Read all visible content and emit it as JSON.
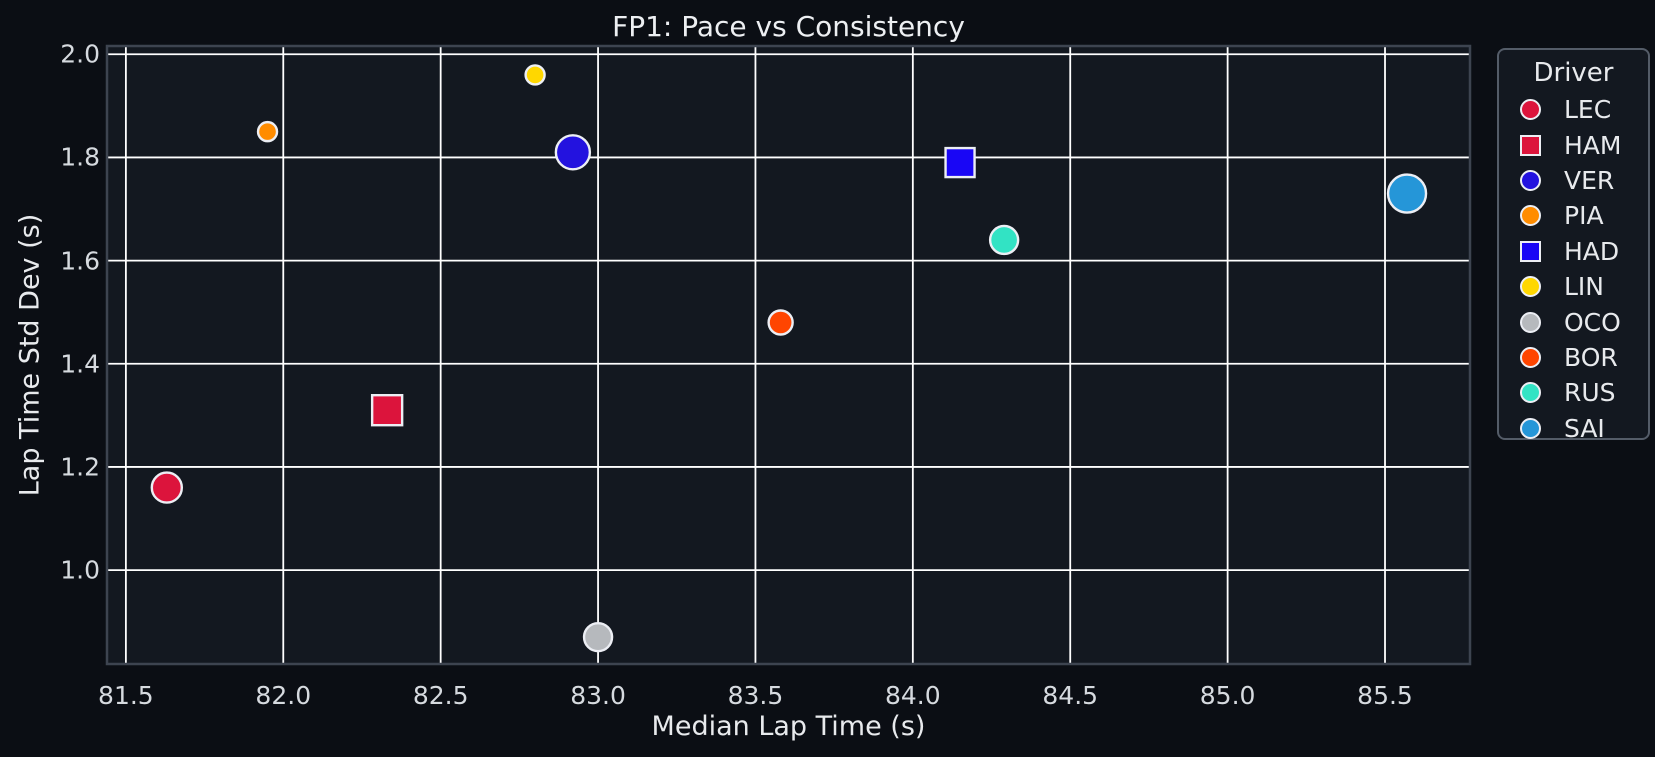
{
  "figure": {
    "background": "#0B0E14",
    "axes_background": "#131820",
    "grid_color": "#FFFFFF",
    "spine_color": "#3D4450",
    "text_color": "#E8EAED",
    "tick_label_color": "#D6DADF",
    "marker_edge_color": "#ECEEF4",
    "legend_border_color": "#545C68"
  },
  "chart_data": {
    "type": "scatter",
    "title": "FP1: Pace vs Consistency",
    "xlabel": "Median Lap Time (s)",
    "ylabel": "Lap Time Std Dev (s)",
    "xlim": [
      81.44,
      85.77
    ],
    "ylim": [
      0.818,
      2.016
    ],
    "x_ticks": [
      81.5,
      82.0,
      82.5,
      83.0,
      83.5,
      84.0,
      84.5,
      85.0,
      85.5
    ],
    "y_ticks": [
      1.0,
      1.2,
      1.4,
      1.6,
      1.8,
      2.0
    ],
    "grid": true,
    "legend_title": "Driver",
    "legend_position": "outside upper right",
    "series": [
      {
        "name": "LEC",
        "x": 81.63,
        "y": 1.16,
        "marker": "circle",
        "color": "#DC143C",
        "radius_px": 15
      },
      {
        "name": "HAM",
        "x": 82.33,
        "y": 1.31,
        "marker": "square",
        "color": "#DC143C",
        "radius_px": 15
      },
      {
        "name": "VER",
        "x": 82.92,
        "y": 1.81,
        "marker": "circle",
        "color": "#2312DF",
        "radius_px": 17
      },
      {
        "name": "PIA",
        "x": 81.95,
        "y": 1.85,
        "marker": "circle",
        "color": "#FF8C00",
        "radius_px": 9.5
      },
      {
        "name": "HAD",
        "x": 84.15,
        "y": 1.79,
        "marker": "square",
        "color": "#1906F5",
        "radius_px": 14.5
      },
      {
        "name": "LIN",
        "x": 82.8,
        "y": 1.96,
        "marker": "circle",
        "color": "#FFD700",
        "radius_px": 9.5
      },
      {
        "name": "OCO",
        "x": 83.0,
        "y": 0.87,
        "marker": "circle",
        "color": "#B6B9BD",
        "radius_px": 14
      },
      {
        "name": "BOR",
        "x": 83.58,
        "y": 1.48,
        "marker": "circle",
        "color": "#FF4500",
        "radius_px": 12
      },
      {
        "name": "RUS",
        "x": 84.29,
        "y": 1.64,
        "marker": "circle",
        "color": "#32E3C4",
        "radius_px": 14
      },
      {
        "name": "SAI",
        "x": 85.57,
        "y": 1.73,
        "marker": "circle",
        "color": "#2596D8",
        "radius_px": 19
      }
    ]
  }
}
